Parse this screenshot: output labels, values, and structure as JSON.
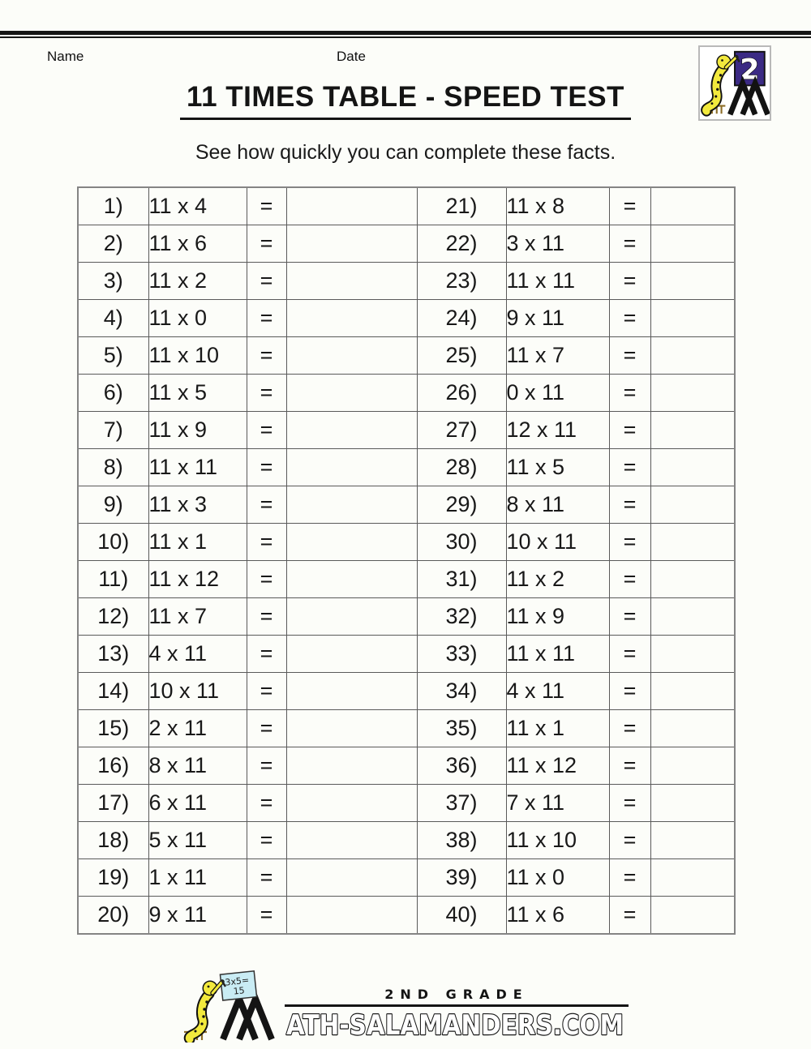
{
  "colors": {
    "paper": "#fcfdf9",
    "ink": "#161616",
    "purple": "#3b2a84",
    "yellow": "#f2e93d",
    "board_blue": "#c9ecf4",
    "stand_brown": "#8d6e28",
    "table_line": "#5a5a5a",
    "table_outer": "#848484"
  },
  "header": {
    "name_label": "Name",
    "date_label": "Date"
  },
  "grade_logo": {
    "number": "2"
  },
  "title": "11 TIMES TABLE - SPEED TEST",
  "subtitle": "See how quickly you can complete these facts.",
  "problems": {
    "equals_sign": "=",
    "left": [
      {
        "n": "1)",
        "q": "11 x 4"
      },
      {
        "n": "2)",
        "q": "11 x 6"
      },
      {
        "n": "3)",
        "q": "11 x 2"
      },
      {
        "n": "4)",
        "q": "11 x 0"
      },
      {
        "n": "5)",
        "q": "11 x 10"
      },
      {
        "n": "6)",
        "q": "11 x 5"
      },
      {
        "n": "7)",
        "q": "11 x 9"
      },
      {
        "n": "8)",
        "q": "11 x 11"
      },
      {
        "n": "9)",
        "q": "11 x 3"
      },
      {
        "n": "10)",
        "q": "11 x 1"
      },
      {
        "n": "11)",
        "q": "11 x 12"
      },
      {
        "n": "12)",
        "q": "11 x 7"
      },
      {
        "n": "13)",
        "q": "4 x 11"
      },
      {
        "n": "14)",
        "q": "10 x 11"
      },
      {
        "n": "15)",
        "q": "2 x 11"
      },
      {
        "n": "16)",
        "q": "8 x 11"
      },
      {
        "n": "17)",
        "q": "6 x 11"
      },
      {
        "n": "18)",
        "q": "5 x 11"
      },
      {
        "n": "19)",
        "q": "1 x 11"
      },
      {
        "n": "20)",
        "q": "9 x 11"
      }
    ],
    "right": [
      {
        "n": "21)",
        "q": "11 x 8"
      },
      {
        "n": "22)",
        "q": "3 x 11"
      },
      {
        "n": "23)",
        "q": "11 x 11"
      },
      {
        "n": "24)",
        "q": "9 x 11"
      },
      {
        "n": "25)",
        "q": "11 x 7"
      },
      {
        "n": "26)",
        "q": "0 x 11"
      },
      {
        "n": "27)",
        "q": "12 x 11"
      },
      {
        "n": "28)",
        "q": "11 x 5"
      },
      {
        "n": "29)",
        "q": "8 x 11"
      },
      {
        "n": "30)",
        "q": "10 x 11"
      },
      {
        "n": "31)",
        "q": "11 x 2"
      },
      {
        "n": "32)",
        "q": "11 x 9"
      },
      {
        "n": "33)",
        "q": "11 x 11"
      },
      {
        "n": "34)",
        "q": "4 x 11"
      },
      {
        "n": "35)",
        "q": "11 x 1"
      },
      {
        "n": "36)",
        "q": "11 x 12"
      },
      {
        "n": "37)",
        "q": "7 x 11"
      },
      {
        "n": "38)",
        "q": "11 x 10"
      },
      {
        "n": "39)",
        "q": "11 x 0"
      },
      {
        "n": "40)",
        "q": "11 x 6"
      }
    ]
  },
  "footer": {
    "grade_text": "2ND GRADE",
    "site_text": "ATH-SALAMANDERS.COM",
    "board_text_line1": "3x5=",
    "board_text_line2": "15"
  }
}
